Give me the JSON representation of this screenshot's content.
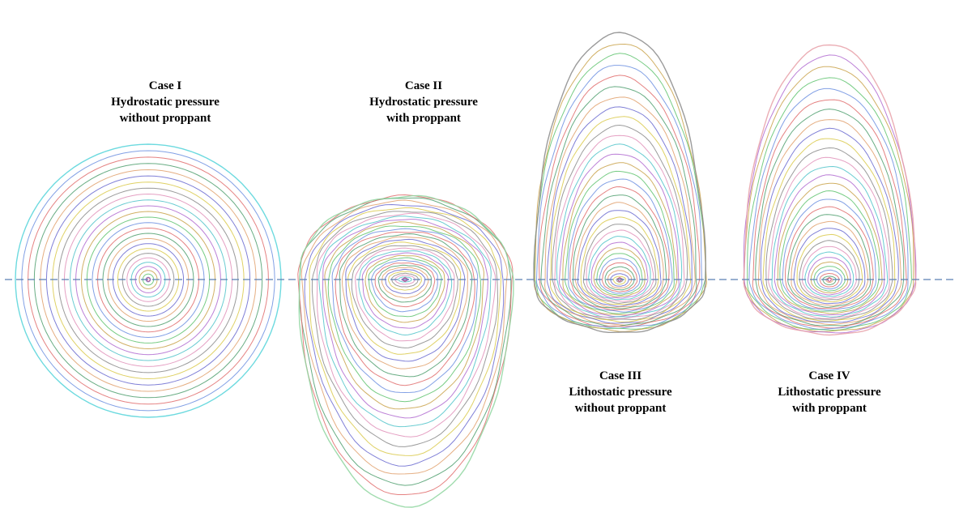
{
  "figure": {
    "palette": [
      "#e06c6c",
      "#6c8fe0",
      "#5fc36f",
      "#c9a24a",
      "#b06ad0",
      "#4fc3c9",
      "#e08fb8",
      "#8a8a8a",
      "#d9c94a",
      "#6a6ad0",
      "#e0a06c",
      "#4f9f6f"
    ],
    "axis_color": "#5b7fb5",
    "cases": [
      {
        "id": "case-1",
        "title": "Case I",
        "line1": "Hydrostatic pressure",
        "line2": "without proppant",
        "shape": "circular",
        "outer_color": "#54d4d9",
        "contour_count": 26
      },
      {
        "id": "case-2",
        "title": "Case II",
        "line1": "Hydrostatic pressure",
        "line2": "with proppant",
        "shape": "downward-elongated",
        "outer_color": "#8fd6a0",
        "contour_count": 34
      },
      {
        "id": "case-3",
        "title": "Case III",
        "line1": "Lithostatic pressure",
        "line2": "without proppant",
        "shape": "upward-elongated",
        "outer_color": "#8a8a8a",
        "contour_count": 34
      },
      {
        "id": "case-4",
        "title": "Case IV",
        "line1": "Lithostatic pressure",
        "line2": "with proppant",
        "shape": "upward-elongated",
        "outer_color": "#e8a0a8",
        "contour_count": 32
      }
    ]
  }
}
